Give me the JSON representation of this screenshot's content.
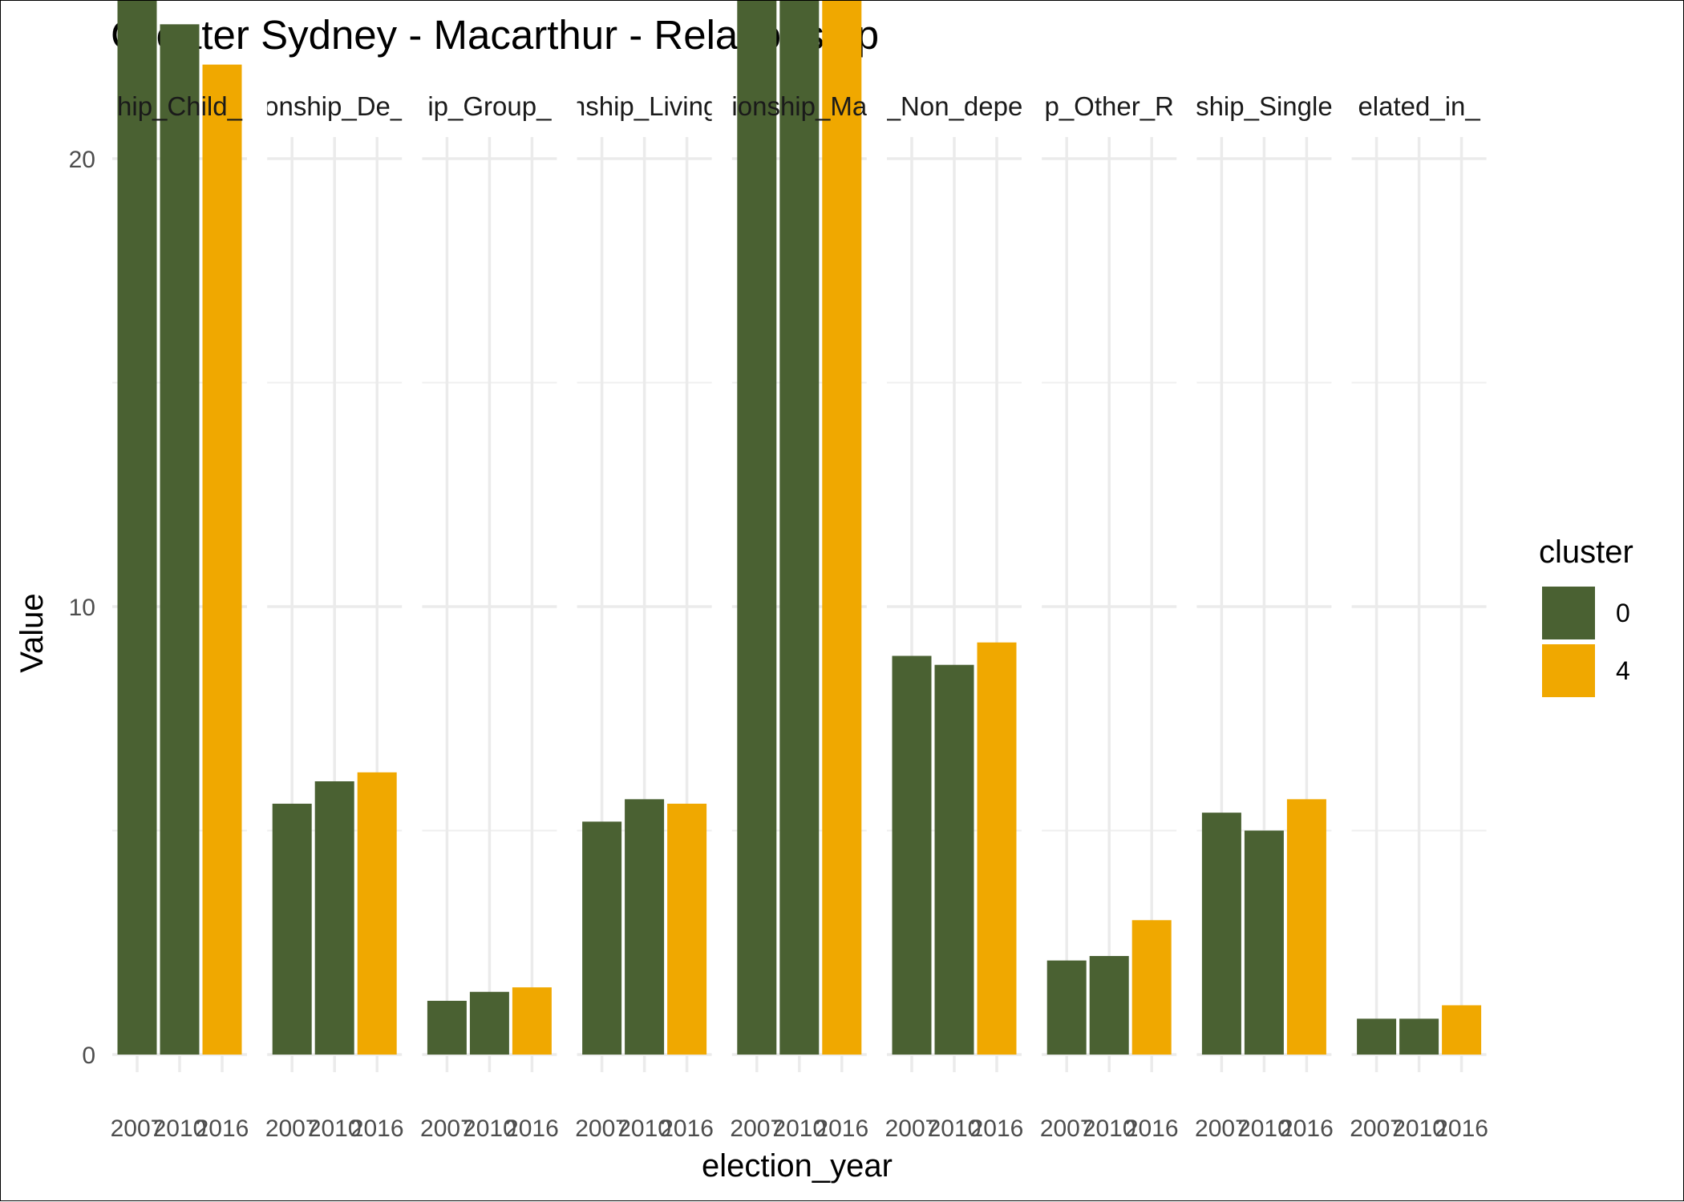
{
  "title": "Greater Sydney - Macarthur - Relationship",
  "chart_data": {
    "type": "bar",
    "title": "Greater Sydney - Macarthur - Relationship",
    "xlabel": "election_year",
    "ylabel": "Value",
    "ylim": [
      0,
      41
    ],
    "y_ticks": [
      0,
      10,
      20,
      30,
      40
    ],
    "grid": true,
    "legend": {
      "title": "cluster",
      "position": "right",
      "entries": [
        {
          "label": "0",
          "color": "#4a6132"
        },
        {
          "label": "4",
          "color": "#f0a800"
        }
      ]
    },
    "panels": [
      {
        "label": "hip_Child_",
        "x": [
          "2007",
          "2010",
          "2016"
        ],
        "values": [
          24.7,
          23.0,
          22.1
        ],
        "cluster": [
          "0",
          "0",
          "4"
        ]
      },
      {
        "label": "onship_De_",
        "x": [
          "2007",
          "2010",
          "2016"
        ],
        "values": [
          5.6,
          6.1,
          6.3
        ],
        "cluster": [
          "0",
          "0",
          "4"
        ]
      },
      {
        "label": "ip_Group_",
        "x": [
          "2007",
          "2010",
          "2016"
        ],
        "values": [
          1.2,
          1.4,
          1.5
        ],
        "cluster": [
          "0",
          "0",
          "4"
        ]
      },
      {
        "label": "nship_Living",
        "x": [
          "2007",
          "2010",
          "2016"
        ],
        "values": [
          5.2,
          5.7,
          5.6
        ],
        "cluster": [
          "0",
          "0",
          "4"
        ]
      },
      {
        "label": "ionship_Ma",
        "x": [
          "2007",
          "2010",
          "2016"
        ],
        "values": [
          38.7,
          39.2,
          37.4
        ],
        "cluster": [
          "0",
          "0",
          "4"
        ]
      },
      {
        "label": "_Non_depe",
        "x": [
          "2007",
          "2010",
          "2016"
        ],
        "values": [
          8.9,
          8.7,
          9.2
        ],
        "cluster": [
          "0",
          "0",
          "4"
        ]
      },
      {
        "label": "p_Other_R",
        "x": [
          "2007",
          "2010",
          "2016"
        ],
        "values": [
          2.1,
          2.2,
          3.0
        ],
        "cluster": [
          "0",
          "0",
          "4"
        ]
      },
      {
        "label": "ship_Single",
        "x": [
          "2007",
          "2010",
          "2016"
        ],
        "values": [
          5.4,
          5.0,
          5.7
        ],
        "cluster": [
          "0",
          "0",
          "4"
        ]
      },
      {
        "label": "elated_in_",
        "x": [
          "2007",
          "2010",
          "2016"
        ],
        "values": [
          0.8,
          0.8,
          1.1
        ],
        "cluster": [
          "0",
          "0",
          "4"
        ]
      }
    ]
  }
}
